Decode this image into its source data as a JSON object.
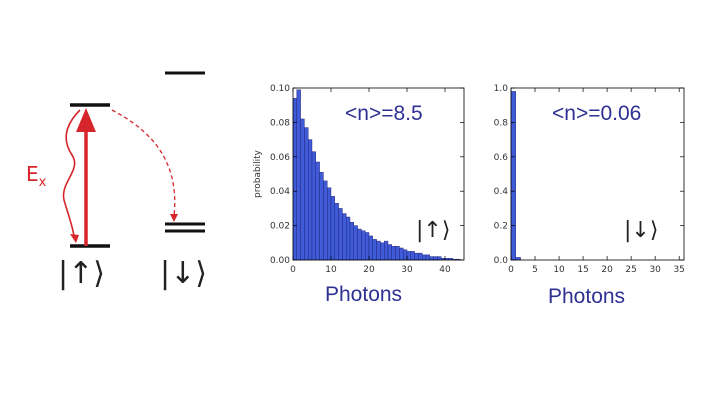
{
  "diagram": {
    "excitation_label": "E",
    "excitation_sub": "x",
    "ket_up": "|↑⟩",
    "ket_down": "|↓⟩",
    "arrow_color": "#d6262b",
    "level_color": "#111111"
  },
  "chart_data": [
    {
      "type": "bar",
      "title": "",
      "annotation": "<n>=8.5",
      "state_label": "|↑⟩",
      "xlabel": "Photons",
      "ylabel": "probability",
      "xlim": [
        0,
        45
      ],
      "ylim": [
        0,
        0.1
      ],
      "xticks": [
        0,
        10,
        20,
        30,
        40
      ],
      "yticks": [
        "0.00",
        "0.02",
        "0.04",
        "0.06",
        "0.08",
        "0.10"
      ],
      "bar_color": "#3f5bd8",
      "x": [
        0,
        1,
        2,
        3,
        4,
        5,
        6,
        7,
        8,
        9,
        10,
        11,
        12,
        13,
        14,
        15,
        16,
        17,
        18,
        19,
        20,
        21,
        22,
        23,
        24,
        25,
        26,
        27,
        28,
        29,
        30,
        31,
        32,
        33,
        34,
        35,
        36,
        37,
        38,
        39,
        40,
        41,
        42,
        43
      ],
      "values": [
        0.094,
        0.099,
        0.082,
        0.077,
        0.07,
        0.063,
        0.057,
        0.051,
        0.046,
        0.042,
        0.037,
        0.033,
        0.03,
        0.027,
        0.025,
        0.022,
        0.02,
        0.018,
        0.017,
        0.016,
        0.014,
        0.012,
        0.011,
        0.01,
        0.011,
        0.009,
        0.008,
        0.008,
        0.007,
        0.006,
        0.005,
        0.005,
        0.004,
        0.004,
        0.003,
        0.003,
        0.002,
        0.002,
        0.002,
        0.001,
        0.001,
        0.001,
        0.0005,
        0.0005
      ]
    },
    {
      "type": "bar",
      "title": "",
      "annotation": "<n>=0.06",
      "state_label": "|↓⟩",
      "xlabel": "Photons",
      "ylabel": "",
      "xlim": [
        0,
        36
      ],
      "ylim": [
        0,
        1.0
      ],
      "xticks": [
        0,
        5,
        10,
        15,
        20,
        25,
        30,
        35
      ],
      "yticks": [
        "0.0",
        "0.2",
        "0.4",
        "0.6",
        "0.8",
        "1.0"
      ],
      "bar_color": "#3f5bd8",
      "x": [
        0,
        1
      ],
      "values": [
        0.98,
        0.015
      ]
    }
  ]
}
